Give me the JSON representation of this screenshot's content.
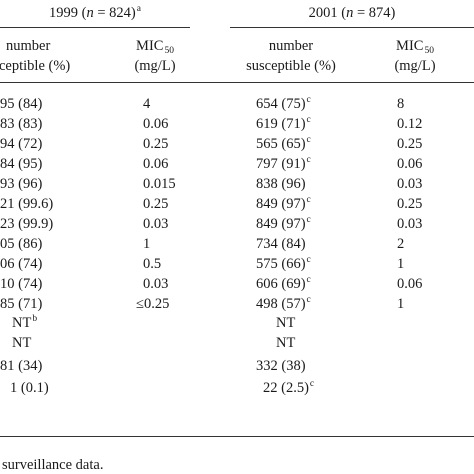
{
  "header": {
    "group_1999": {
      "prefix": "1999 (",
      "n_italic": "n",
      "mid": " = 824)",
      "sup": "a"
    },
    "group_2001": {
      "prefix": "2001 (",
      "n_italic": "n",
      "mid": " = 874)",
      "sup": ""
    },
    "col_number_line1": "number",
    "col_number_1999_line2": "ceptible (%)",
    "col_number_2001_line2": "susceptible (%)",
    "col_mic_base": "MIC",
    "col_mic_sub": "50",
    "col_mic_unit": "(mg/L)"
  },
  "rows": [
    {
      "n1999": "95 (84)",
      "sup1999": "",
      "mic1999": "4",
      "n2001": "654 (75)",
      "sup2001": "c",
      "mic2001": "8"
    },
    {
      "n1999": "83 (83)",
      "sup1999": "",
      "mic1999": "0.06",
      "n2001": "619 (71)",
      "sup2001": "c",
      "mic2001": "0.12"
    },
    {
      "n1999": "94 (72)",
      "sup1999": "",
      "mic1999": "0.25",
      "n2001": "565 (65)",
      "sup2001": "c",
      "mic2001": "0.25"
    },
    {
      "n1999": "84 (95)",
      "sup1999": "",
      "mic1999": "0.06",
      "n2001": "797 (91)",
      "sup2001": "c",
      "mic2001": "0.06"
    },
    {
      "n1999": "93 (96)",
      "sup1999": "",
      "mic1999": "0.015",
      "n2001": "838 (96)",
      "sup2001": "",
      "mic2001": "0.03"
    },
    {
      "n1999": "21 (99.6)",
      "sup1999": "",
      "mic1999": "0.25",
      "n2001": "849 (97)",
      "sup2001": "c",
      "mic2001": "0.25"
    },
    {
      "n1999": "23 (99.9)",
      "sup1999": "",
      "mic1999": "0.03",
      "n2001": "849 (97)",
      "sup2001": "c",
      "mic2001": "0.03"
    },
    {
      "n1999": "05 (86)",
      "sup1999": "",
      "mic1999": "1",
      "n2001": "734 (84)",
      "sup2001": "",
      "mic2001": "2"
    },
    {
      "n1999": "06 (74)",
      "sup1999": "",
      "mic1999": "0.5",
      "n2001": "575 (66)",
      "sup2001": "c",
      "mic2001": "1"
    },
    {
      "n1999": "10 (74)",
      "sup1999": "",
      "mic1999": "0.03",
      "n2001": "606 (69)",
      "sup2001": "c",
      "mic2001": "0.06"
    },
    {
      "n1999": "85 (71)",
      "sup1999": "",
      "mic1999": "≤0.25",
      "n2001": "498 (57)",
      "sup2001": "c",
      "mic2001": "1"
    },
    {
      "n1999": "NT",
      "sup1999": "b",
      "mic1999": "",
      "n2001": "NT",
      "sup2001": "",
      "mic2001": ""
    },
    {
      "n1999": "NT",
      "sup1999": "",
      "mic1999": "",
      "n2001": "NT",
      "sup2001": "",
      "mic2001": ""
    },
    {
      "n1999": "81 (34)",
      "sup1999": "",
      "mic1999": "",
      "n2001": "332 (38)",
      "sup2001": "",
      "mic2001": ""
    },
    {
      "n1999": "1 (0.1)",
      "sup1999": "",
      "mic1999": "",
      "n2001": "22 (2.5)",
      "sup2001": "c",
      "mic2001": ""
    }
  ],
  "footnote": "surveillance data."
}
